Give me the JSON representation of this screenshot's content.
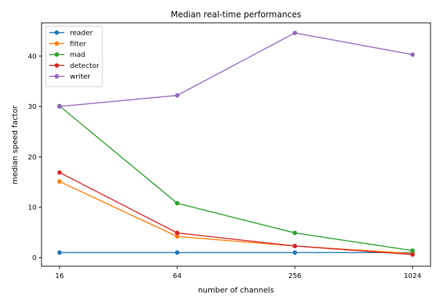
{
  "chart_data": {
    "type": "line",
    "title": "Median real-time performances",
    "xlabel": "number of channels",
    "ylabel": "median speed factor",
    "x": [
      16,
      64,
      256,
      1024
    ],
    "x_scale": "log",
    "ylim": [
      -1.7,
      46.6
    ],
    "y_ticks": [
      0,
      10,
      20,
      30,
      40
    ],
    "grid": false,
    "legend_position": "top-left",
    "series": [
      {
        "name": "reader",
        "color": "#1f77b4",
        "values": [
          1.0,
          1.0,
          1.0,
          1.0
        ]
      },
      {
        "name": "filter",
        "color": "#ff7f0e",
        "values": [
          15.1,
          4.2,
          2.3,
          0.8
        ]
      },
      {
        "name": "mad",
        "color": "#2ca02c",
        "values": [
          30.1,
          10.8,
          4.9,
          1.4
        ]
      },
      {
        "name": "detector",
        "color": "#d62728",
        "values": [
          16.9,
          4.9,
          2.3,
          0.6
        ]
      },
      {
        "name": "writer",
        "color": "#9467bd",
        "values": [
          30.0,
          32.2,
          44.6,
          40.3
        ]
      }
    ]
  }
}
